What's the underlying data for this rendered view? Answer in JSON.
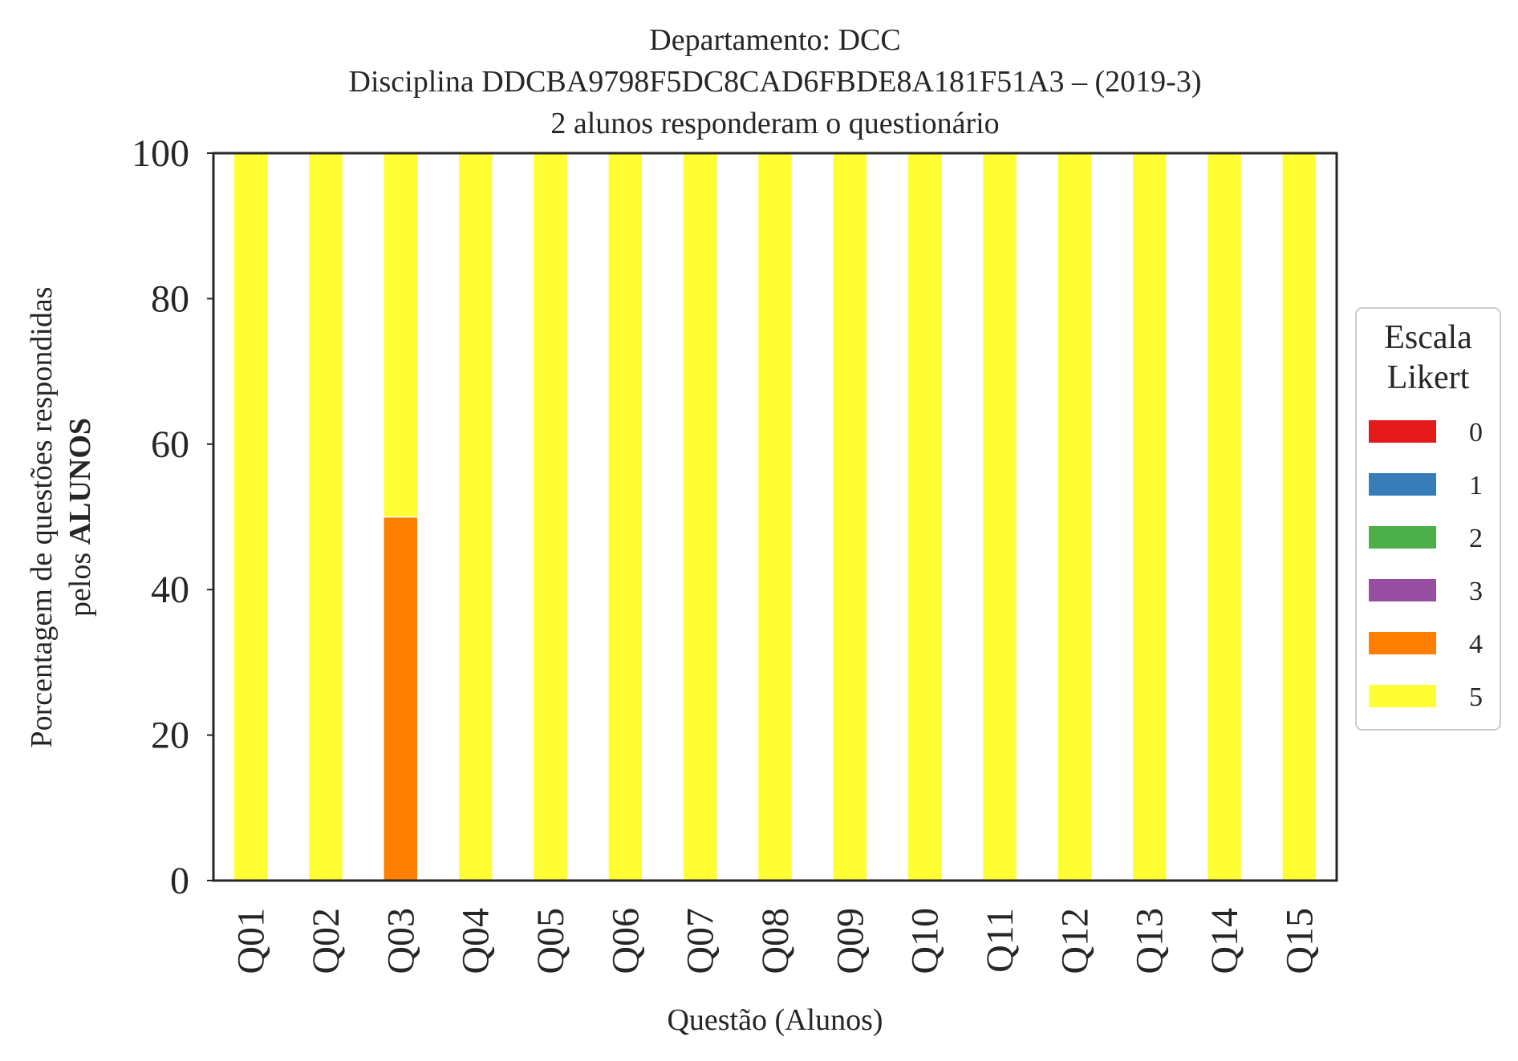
{
  "chart_data": {
    "type": "bar",
    "stacked": true,
    "title_lines": [
      "Departamento: DCC",
      "Disciplina DDCBA9798F5DC8CAD6FBDE8A181F51A3 – (2019-3)",
      "2 alunos responderam o questionário"
    ],
    "xlabel": "Questão (Alunos)",
    "ylabel_line1": "Porcentagem de questões respondidas",
    "ylabel_line2_prefix": "pelos ",
    "ylabel_line2_bold": "ALUNOS",
    "ylim": [
      0,
      100
    ],
    "yticks": [
      "0",
      "20",
      "40",
      "60",
      "80",
      "100"
    ],
    "categories": [
      "Q01",
      "Q02",
      "Q03",
      "Q04",
      "Q05",
      "Q06",
      "Q07",
      "Q08",
      "Q09",
      "Q10",
      "Q11",
      "Q12",
      "Q13",
      "Q14",
      "Q15"
    ],
    "legend": {
      "title_line1": "Escala",
      "title_line2": "Likert",
      "placement": "right-center"
    },
    "series": [
      {
        "name": "0",
        "color": "#e41a1c",
        "values": [
          0,
          0,
          0,
          0,
          0,
          0,
          0,
          0,
          0,
          0,
          0,
          0,
          0,
          0,
          0
        ]
      },
      {
        "name": "1",
        "color": "#377eb8",
        "values": [
          0,
          0,
          0,
          0,
          0,
          0,
          0,
          0,
          0,
          0,
          0,
          0,
          0,
          0,
          0
        ]
      },
      {
        "name": "2",
        "color": "#4daf4a",
        "values": [
          0,
          0,
          0,
          0,
          0,
          0,
          0,
          0,
          0,
          0,
          0,
          0,
          0,
          0,
          0
        ]
      },
      {
        "name": "3",
        "color": "#984ea3",
        "values": [
          0,
          0,
          0,
          0,
          0,
          0,
          0,
          0,
          0,
          0,
          0,
          0,
          0,
          0,
          0
        ]
      },
      {
        "name": "4",
        "color": "#ff7f00",
        "values": [
          0,
          0,
          50,
          0,
          0,
          0,
          0,
          0,
          0,
          0,
          0,
          0,
          0,
          0,
          0
        ]
      },
      {
        "name": "5",
        "color": "#ffff33",
        "values": [
          100,
          100,
          50,
          100,
          100,
          100,
          100,
          100,
          100,
          100,
          100,
          100,
          100,
          100,
          100
        ]
      }
    ],
    "grid": false
  }
}
